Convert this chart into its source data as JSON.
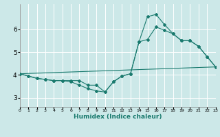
{
  "xlabel": "Humidex (Indice chaleur)",
  "bg_color": "#cce8e8",
  "grid_color": "#b8d8d8",
  "line_color": "#1a7a6e",
  "xlim": [
    0,
    23
  ],
  "ylim": [
    2.6,
    7.1
  ],
  "yticks": [
    3,
    4,
    5,
    6
  ],
  "xticks": [
    0,
    1,
    2,
    3,
    4,
    5,
    6,
    7,
    8,
    9,
    10,
    11,
    12,
    13,
    14,
    15,
    16,
    17,
    18,
    19,
    20,
    21,
    22,
    23
  ],
  "series1_x": [
    0,
    1,
    2,
    3,
    4,
    5,
    6,
    7,
    8,
    9,
    10,
    11,
    12,
    13,
    14,
    15,
    16,
    17,
    18,
    19,
    20,
    21,
    22,
    23
  ],
  "series1_y": [
    4.05,
    3.95,
    3.85,
    3.8,
    3.75,
    3.75,
    3.7,
    3.55,
    3.4,
    3.3,
    3.25,
    3.7,
    3.95,
    4.05,
    5.45,
    5.55,
    6.1,
    5.95,
    5.8,
    5.5,
    5.5,
    5.25,
    4.8,
    4.35
  ],
  "series2_x": [
    0,
    1,
    2,
    3,
    4,
    5,
    6,
    7,
    8,
    9,
    10,
    11,
    12,
    13,
    14,
    15,
    16,
    17,
    18,
    19,
    20,
    21,
    22,
    23
  ],
  "series2_y": [
    4.05,
    3.95,
    3.85,
    3.8,
    3.75,
    3.75,
    3.75,
    3.75,
    3.55,
    3.55,
    3.25,
    3.7,
    3.95,
    4.05,
    5.45,
    6.55,
    6.65,
    6.2,
    5.8,
    5.5,
    5.5,
    5.25,
    4.8,
    4.35
  ],
  "series3_x": [
    0,
    23
  ],
  "series3_y": [
    4.05,
    4.35
  ],
  "figsize": [
    3.2,
    2.0
  ],
  "dpi": 100
}
